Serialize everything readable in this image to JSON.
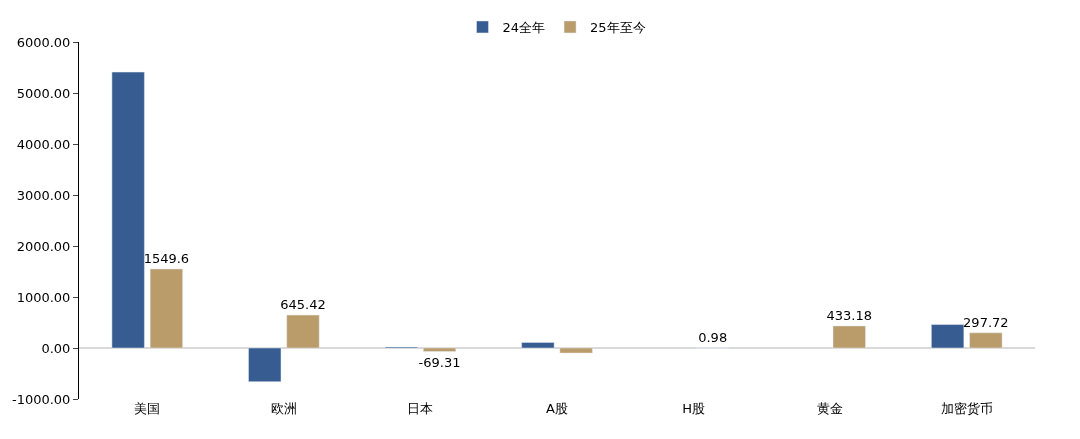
{
  "chart_data": {
    "type": "bar",
    "categories": [
      "美国",
      "欧洲",
      "日本",
      "A股",
      "H股",
      "黄金",
      "加密货币"
    ],
    "series": [
      {
        "name": "24全年",
        "color": "#365c91",
        "values": [
          5410,
          -660,
          20,
          110,
          null,
          null,
          460
        ]
      },
      {
        "name": "25年至今",
        "color": "#b99c6a",
        "values": [
          1549.6,
          645.42,
          -69.31,
          -100,
          0.98,
          433.18,
          297.72
        ],
        "value_labels": [
          "1549.6",
          "645.42",
          "-69.31",
          null,
          "0.98",
          "433.18",
          "297.72"
        ]
      }
    ],
    "ylim": [
      -1000,
      6000
    ],
    "yticks": [
      {
        "value": -1000,
        "label": "-1000.00"
      },
      {
        "value": 0,
        "label": "0.00"
      },
      {
        "value": 1000,
        "label": "1000.00"
      },
      {
        "value": 2000,
        "label": "2000.00"
      },
      {
        "value": 3000,
        "label": "3000.00"
      },
      {
        "value": 4000,
        "label": "4000.00"
      },
      {
        "value": 5000,
        "label": "5000.00"
      },
      {
        "value": 6000,
        "label": "6000.00"
      }
    ],
    "grid": false,
    "ref_lines": [
      {
        "axis": "y",
        "value": 0,
        "color": "#d9d9d9"
      }
    ],
    "legend": "top"
  }
}
